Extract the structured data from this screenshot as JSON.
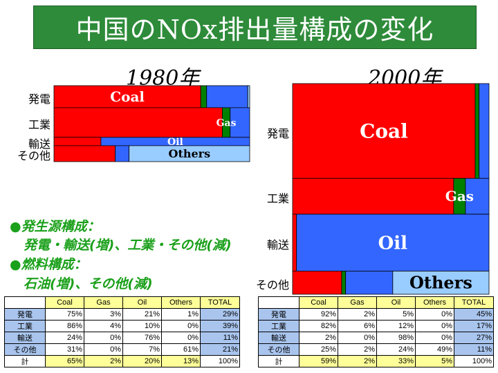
{
  "title": "中国のNOx排出量構成の変化",
  "notes": {
    "line1": "●発生源構成：",
    "line2": "発電・輸送(増)、工業・その他(減)",
    "line3": "●燃料構成：",
    "line4": "石油(増)、その他(減)"
  },
  "colors": {
    "Coal": "#ff0000",
    "Gas": "#008000",
    "Oil": "#3366ff",
    "Others": "#99ccff"
  },
  "table_headers": [
    "Coal",
    "Gas",
    "Oil",
    "Others",
    "TOTAL"
  ],
  "chart_data": [
    {
      "type": "mosaic",
      "title": "1980年",
      "fuels": [
        "Coal",
        "Gas",
        "Oil",
        "Others"
      ],
      "fuel_labels": [
        "Coal",
        "Gas",
        "Oil",
        "Others"
      ],
      "rows": [
        {
          "name": "発電",
          "table_name": "発電",
          "shares": [
            75,
            3,
            21,
            1
          ],
          "total": 29
        },
        {
          "name": "工業",
          "table_name": "工業",
          "shares": [
            86,
            4,
            10,
            0
          ],
          "total": 39
        },
        {
          "name": "輸送",
          "table_name": "輸送",
          "shares": [
            24,
            0,
            76,
            0
          ],
          "total": 11
        },
        {
          "name": "その他",
          "table_name": "その他",
          "shares": [
            31,
            0,
            7,
            61
          ],
          "total": 21
        }
      ],
      "sum": {
        "name": "計",
        "shares": [
          65,
          2,
          20,
          13
        ],
        "total": 100
      }
    },
    {
      "type": "mosaic",
      "title": "2000年",
      "fuels": [
        "Coal",
        "Gas",
        "Oil",
        "Others"
      ],
      "fuel_labels": [
        "Coal",
        "Gas",
        "Oil",
        "Others"
      ],
      "rows": [
        {
          "name": "発電",
          "table_name": "発電",
          "shares": [
            92,
            2,
            5,
            0
          ],
          "total": 45
        },
        {
          "name": "工業",
          "table_name": "工業",
          "shares": [
            82,
            6,
            12,
            0
          ],
          "total": 17
        },
        {
          "name": "輸送",
          "table_name": "輸送",
          "shares": [
            2,
            0,
            98,
            0
          ],
          "total": 27
        },
        {
          "name": "その他",
          "table_name": "その他",
          "shares": [
            25,
            2,
            24,
            49
          ],
          "total": 11
        }
      ],
      "sum": {
        "name": "計",
        "shares": [
          59,
          2,
          33,
          5
        ],
        "total": 100
      }
    }
  ]
}
